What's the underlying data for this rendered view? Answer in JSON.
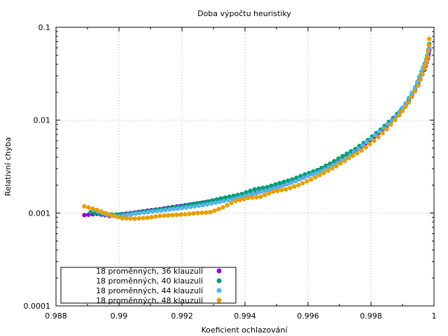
{
  "chart_data": {
    "type": "scatter",
    "title": "Doba výpočtu heuristiky",
    "xlabel": "Koeficient ochlazování",
    "ylabel": "Relativní chyba",
    "xlim": [
      0.988,
      1.0
    ],
    "ylim": [
      0.0001,
      0.1
    ],
    "yscale": "log",
    "grid": true,
    "legend_position": "bottom-left",
    "x_ticks": [
      "0.988",
      "0.99",
      "0.992",
      "0.994",
      "0.996",
      "0.998",
      "1"
    ],
    "y_ticks": [
      "0.0001",
      "0.001",
      "0.01",
      "0.1"
    ],
    "series": [
      {
        "name": "18 proměnných, 36 klauzulí",
        "color": "#9400d3",
        "points": [
          [
            0.9889,
            0.00095
          ],
          [
            0.9893,
            0.00098
          ],
          [
            0.9897,
            0.00093
          ],
          [
            0.9901,
            0.00097
          ],
          [
            0.9905,
            0.00101
          ],
          [
            0.9909,
            0.00106
          ],
          [
            0.9913,
            0.0011
          ],
          [
            0.9917,
            0.00116
          ],
          [
            0.9921,
            0.00121
          ],
          [
            0.9925,
            0.00127
          ],
          [
            0.9929,
            0.00133
          ],
          [
            0.9933,
            0.0014
          ],
          [
            0.9937,
            0.00148
          ],
          [
            0.9941,
            0.00158
          ],
          [
            0.9945,
            0.00171
          ],
          [
            0.9949,
            0.00187
          ],
          [
            0.9953,
            0.00206
          ],
          [
            0.9957,
            0.00231
          ],
          [
            0.9961,
            0.00264
          ],
          [
            0.9965,
            0.00303
          ],
          [
            0.9969,
            0.00356
          ],
          [
            0.9973,
            0.00425
          ],
          [
            0.9977,
            0.00522
          ],
          [
            0.9981,
            0.0066
          ],
          [
            0.9985,
            0.0087
          ],
          [
            0.9989,
            0.012
          ],
          [
            0.9992,
            0.0165
          ],
          [
            0.9995,
            0.0245
          ],
          [
            0.9997,
            0.035
          ],
          [
            0.9998,
            0.046
          ],
          [
            0.99985,
            0.057
          ]
        ]
      },
      {
        "name": "18 proměnných, 40 klauzulí",
        "color": "#009e73",
        "points": [
          [
            0.9891,
            0.00102
          ],
          [
            0.9895,
            0.00097
          ],
          [
            0.9899,
            0.00096
          ],
          [
            0.9903,
            0.00098
          ],
          [
            0.9907,
            0.00103
          ],
          [
            0.9911,
            0.00107
          ],
          [
            0.9915,
            0.00112
          ],
          [
            0.9919,
            0.00117
          ],
          [
            0.9923,
            0.00124
          ],
          [
            0.9927,
            0.0013
          ],
          [
            0.9931,
            0.0014
          ],
          [
            0.9935,
            0.0015
          ],
          [
            0.9939,
            0.0016
          ],
          [
            0.9943,
            0.0018
          ],
          [
            0.9947,
            0.0019
          ],
          [
            0.9951,
            0.0021
          ],
          [
            0.9955,
            0.0023
          ],
          [
            0.9959,
            0.0026
          ],
          [
            0.9963,
            0.0029
          ],
          [
            0.9967,
            0.0034
          ],
          [
            0.9971,
            0.0041
          ],
          [
            0.9975,
            0.0049
          ],
          [
            0.9979,
            0.0061
          ],
          [
            0.9983,
            0.0079
          ],
          [
            0.9987,
            0.0105
          ],
          [
            0.9991,
            0.0145
          ],
          [
            0.9994,
            0.021
          ],
          [
            0.9996,
            0.031
          ],
          [
            0.99975,
            0.042
          ],
          [
            0.99985,
            0.066
          ]
        ]
      },
      {
        "name": "18 proměnných, 44 klauzulí",
        "color": "#56b4e9",
        "points": [
          [
            0.9892,
            0.00108
          ],
          [
            0.9896,
            0.00096
          ],
          [
            0.99,
            0.00092
          ],
          [
            0.9904,
            0.00097
          ],
          [
            0.9908,
            0.00101
          ],
          [
            0.9912,
            0.00105
          ],
          [
            0.9916,
            0.00109
          ],
          [
            0.992,
            0.00113
          ],
          [
            0.9924,
            0.00118
          ],
          [
            0.9928,
            0.00124
          ],
          [
            0.9932,
            0.00132
          ],
          [
            0.9936,
            0.00141
          ],
          [
            0.994,
            0.00153
          ],
          [
            0.9944,
            0.00166
          ],
          [
            0.9948,
            0.0018
          ],
          [
            0.9952,
            0.00197
          ],
          [
            0.9956,
            0.0022
          ],
          [
            0.996,
            0.0025
          ],
          [
            0.9964,
            0.0028
          ],
          [
            0.9968,
            0.0033
          ],
          [
            0.9972,
            0.0039
          ],
          [
            0.9976,
            0.0049
          ],
          [
            0.998,
            0.0063
          ],
          [
            0.9984,
            0.0082
          ],
          [
            0.9988,
            0.011
          ],
          [
            0.9991,
            0.0152
          ],
          [
            0.9994,
            0.0225
          ],
          [
            0.9996,
            0.0335
          ],
          [
            0.99975,
            0.045
          ],
          [
            0.99985,
            0.06
          ]
        ]
      },
      {
        "name": "18 proměnných, 48 klauzulí",
        "color": "#e69f00",
        "points": [
          [
            0.9889,
            0.00118
          ],
          [
            0.9893,
            0.00108
          ],
          [
            0.9897,
            0.00096
          ],
          [
            0.9901,
            0.00088
          ],
          [
            0.9905,
            0.00087
          ],
          [
            0.9909,
            0.00089
          ],
          [
            0.9913,
            0.00093
          ],
          [
            0.9917,
            0.00095
          ],
          [
            0.9921,
            0.00097
          ],
          [
            0.9925,
            0.001
          ],
          [
            0.9929,
            0.00102
          ],
          [
            0.9933,
            0.00115
          ],
          [
            0.9937,
            0.00135
          ],
          [
            0.9941,
            0.00145
          ],
          [
            0.9945,
            0.0015
          ],
          [
            0.9949,
            0.0017
          ],
          [
            0.9953,
            0.0018
          ],
          [
            0.9957,
            0.002
          ],
          [
            0.9961,
            0.0023
          ],
          [
            0.9965,
            0.0027
          ],
          [
            0.9969,
            0.0032
          ],
          [
            0.9973,
            0.0039
          ],
          [
            0.9977,
            0.0047
          ],
          [
            0.9981,
            0.006
          ],
          [
            0.9985,
            0.008
          ],
          [
            0.9989,
            0.0113
          ],
          [
            0.9992,
            0.0155
          ],
          [
            0.9995,
            0.0235
          ],
          [
            0.9997,
            0.036
          ],
          [
            0.9998,
            0.048
          ],
          [
            0.99985,
            0.075
          ]
        ]
      }
    ]
  }
}
